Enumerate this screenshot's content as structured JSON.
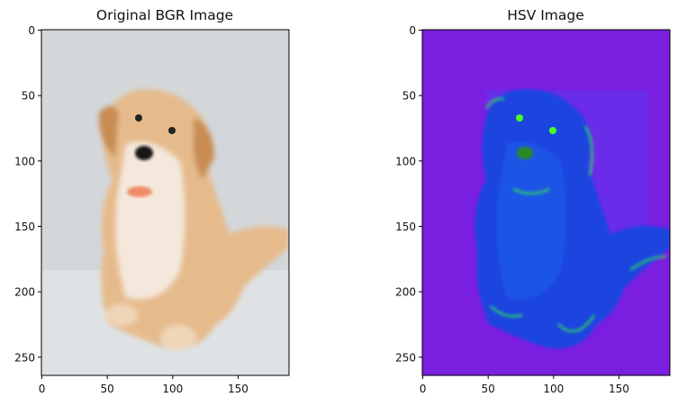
{
  "chart_data": [
    {
      "type": "image",
      "title": "Original BGR Image",
      "content": "photo of a golden puppy sitting on white cloth",
      "xlim": [
        0,
        189
      ],
      "ylim": [
        265,
        0
      ],
      "xticks": [
        0,
        50,
        100,
        150
      ],
      "yticks": [
        0,
        50,
        100,
        150,
        200,
        250
      ],
      "colors": {
        "background": "#d3d7da",
        "fur": "#e2b27f",
        "light_fur": "#f1e2d2"
      }
    },
    {
      "type": "image",
      "title": "HSV Image",
      "content": "HSV conversion of the puppy photo shown as RGB",
      "xlim": [
        0,
        189
      ],
      "ylim": [
        265,
        0
      ],
      "xticks": [
        0,
        50,
        100,
        150
      ],
      "yticks": [
        0,
        50,
        100,
        150,
        200,
        250
      ],
      "colors": {
        "background": "#7a1fe0",
        "dog": "#1a44e0",
        "highlight": "#2fd06a"
      }
    }
  ]
}
